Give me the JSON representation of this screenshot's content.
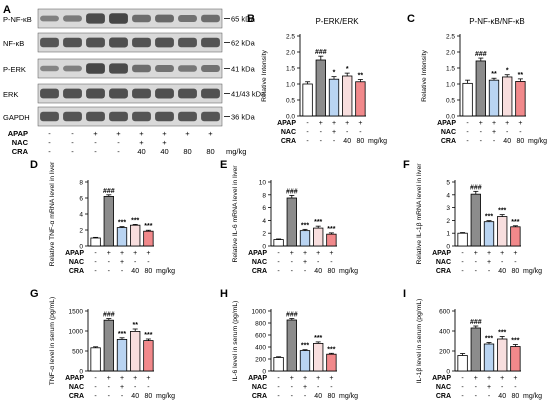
{
  "colors": {
    "control": "#ffffff",
    "apap": "#8c8c8c",
    "nac": "#b9d4f2",
    "cra40": "#f8dede",
    "cra80": "#f1898b",
    "band": "#3a3a3a",
    "blot_bg": "#d9d9d9"
  },
  "western_blot": {
    "panel_letter": "A",
    "rows": [
      {
        "name": "P-NF-κB",
        "kda": "65 kDa"
      },
      {
        "name": "NF-κB",
        "kda": "62 kDa"
      },
      {
        "name": "P-ERK",
        "kda": "41 kDa"
      },
      {
        "name": "ERK",
        "kda": "41/43 kDa"
      },
      {
        "name": "GAPDH",
        "kda": "36 kDa"
      }
    ],
    "treatment_rows": [
      {
        "name": "APAP",
        "marks": [
          "-",
          "-",
          "+",
          "+",
          "+",
          "+",
          "+",
          "+"
        ]
      },
      {
        "name": "NAC",
        "marks": [
          "-",
          "-",
          "-",
          "-",
          "+",
          "+",
          "",
          ""
        ]
      },
      {
        "name": "CRA",
        "marks": [
          "-",
          "-",
          "-",
          "-",
          "40",
          "40",
          "80",
          "80"
        ]
      }
    ],
    "unit": "mg/kg"
  },
  "treatments": {
    "rows": [
      {
        "name": "APAP",
        "marks": [
          "-",
          "+",
          "+",
          "+",
          "+"
        ]
      },
      {
        "name": "NAC",
        "marks": [
          "-",
          "-",
          "+",
          "-",
          "-"
        ]
      },
      {
        "name": "CRA",
        "marks": [
          "-",
          "-",
          "-",
          "40",
          "80"
        ]
      }
    ],
    "unit": "mg/kg"
  },
  "chart_data": [
    {
      "panel": "B",
      "type": "bar",
      "title": "P-ERK/ERK",
      "ylabel": "Relative Intensity",
      "ylim": [
        0,
        2.5
      ],
      "yticks": [
        "0.0",
        "0.5",
        "1.0",
        "1.5",
        "2.0",
        "2.5"
      ],
      "values": [
        1.0,
        1.75,
        1.15,
        1.25,
        1.07
      ],
      "errors": [
        0.07,
        0.12,
        0.08,
        0.09,
        0.07
      ],
      "sig": [
        "",
        "###",
        "*",
        "*",
        "**"
      ]
    },
    {
      "panel": "C",
      "type": "bar",
      "title": "P-NF-κB/NF-κB",
      "ylabel": "Relative Intensity",
      "ylim": [
        0,
        2.5
      ],
      "yticks": [
        "0.0",
        "0.5",
        "1.0",
        "1.5",
        "2.0",
        "2.5"
      ],
      "values": [
        1.02,
        1.72,
        1.12,
        1.22,
        1.08
      ],
      "errors": [
        0.1,
        0.09,
        0.06,
        0.07,
        0.08
      ],
      "sig": [
        "",
        "###",
        "**",
        "*",
        "**"
      ]
    },
    {
      "panel": "D",
      "type": "bar",
      "ylabel": "Relative TNF-α mRNA level in liver",
      "ylim": [
        0,
        8
      ],
      "yticks": [
        "0",
        "2",
        "4",
        "6",
        "8"
      ],
      "values": [
        1.0,
        6.2,
        2.3,
        2.6,
        1.85
      ],
      "errors": [
        0.08,
        0.2,
        0.12,
        0.1,
        0.12
      ],
      "sig": [
        "",
        "###",
        "***",
        "***",
        "***"
      ]
    },
    {
      "panel": "E",
      "type": "bar",
      "ylabel": "Relative IL-6 mRNA level in liver",
      "ylim": [
        0,
        10
      ],
      "yticks": [
        "0",
        "2",
        "4",
        "6",
        "8",
        "10"
      ],
      "values": [
        1.0,
        7.5,
        2.4,
        2.8,
        1.85
      ],
      "errors": [
        0.1,
        0.4,
        0.2,
        0.3,
        0.2
      ],
      "sig": [
        "",
        "###",
        "***",
        "***",
        "***"
      ]
    },
    {
      "panel": "F",
      "type": "bar",
      "ylabel": "Relative IL-1β mRNA level in liver",
      "ylim": [
        0,
        5
      ],
      "yticks": [
        "0",
        "1",
        "2",
        "3",
        "4",
        "5"
      ],
      "values": [
        1.0,
        4.05,
        1.9,
        2.3,
        1.5
      ],
      "errors": [
        0.05,
        0.22,
        0.08,
        0.15,
        0.08
      ],
      "sig": [
        "",
        "###",
        "***",
        "***",
        "***"
      ]
    },
    {
      "panel": "G",
      "type": "bar",
      "ylabel": "TNF-α level in serum (pg/mL)",
      "ylim": [
        0,
        1500
      ],
      "yticks": [
        "0",
        "500",
        "1000",
        "1500"
      ],
      "values": [
        580,
        1270,
        790,
        990,
        760
      ],
      "errors": [
        25,
        40,
        40,
        60,
        40
      ],
      "sig": [
        "",
        "###",
        "***",
        "**",
        "***"
      ]
    },
    {
      "panel": "H",
      "type": "bar",
      "ylabel": "IL-6 level in serum (pg/mL)",
      "ylim": [
        0,
        1000
      ],
      "yticks": [
        "0",
        "200",
        "400",
        "600",
        "800",
        "1000"
      ],
      "values": [
        225,
        850,
        340,
        460,
        280
      ],
      "errors": [
        12,
        25,
        15,
        25,
        15
      ],
      "sig": [
        "",
        "###",
        "***",
        "***",
        "***"
      ]
    },
    {
      "panel": "I",
      "type": "bar",
      "ylabel": "IL-1β level in serum (pg/mL)",
      "ylim": [
        0,
        600
      ],
      "yticks": [
        "0",
        "200",
        "400",
        "600"
      ],
      "values": [
        155,
        430,
        270,
        320,
        245
      ],
      "errors": [
        20,
        20,
        15,
        25,
        20
      ],
      "sig": [
        "",
        "###",
        "***",
        "***",
        "***"
      ]
    }
  ]
}
